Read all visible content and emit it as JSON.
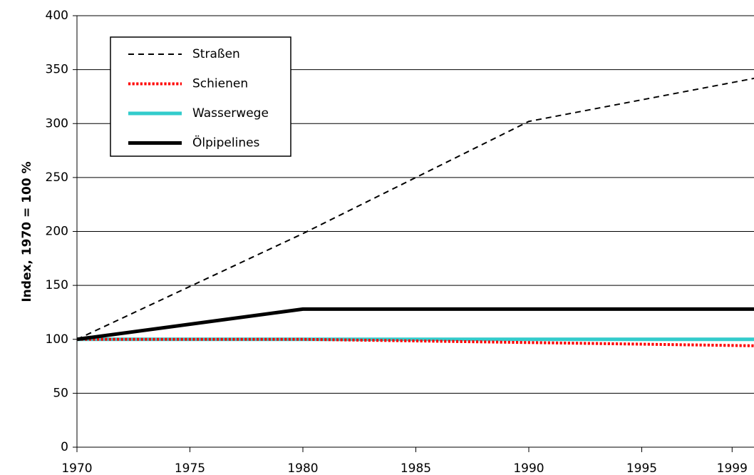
{
  "chart_data": {
    "type": "line",
    "y_label": "Index, 1970 = 100 %",
    "x": [
      1970,
      1980,
      1990,
      2000
    ],
    "xlim": [
      1970,
      2000
    ],
    "xticks": [
      1970,
      1975,
      1980,
      1985,
      1990,
      1995,
      1999
    ],
    "ylim": [
      0,
      400
    ],
    "yticks": [
      0,
      50,
      100,
      150,
      200,
      250,
      300,
      350,
      400
    ],
    "grid": true,
    "legend": "upper left",
    "series": [
      {
        "name": "Straßen",
        "color": "#000000",
        "linestyle": "dashed",
        "linewidth": 2,
        "values": [
          100,
          198,
          302,
          342
        ]
      },
      {
        "name": "Schienen",
        "color": "#ff0000",
        "linestyle": "dotted",
        "linewidth": 4,
        "values": [
          100,
          100,
          97,
          94
        ]
      },
      {
        "name": "Wasserwege",
        "color": "#33cccc",
        "linestyle": "solid",
        "linewidth": 5,
        "values": [
          100,
          100,
          100,
          100
        ]
      },
      {
        "name": "Ölpipelines",
        "color": "#000000",
        "linestyle": "solid",
        "linewidth": 5,
        "values": [
          100,
          128,
          128,
          128
        ]
      }
    ]
  }
}
